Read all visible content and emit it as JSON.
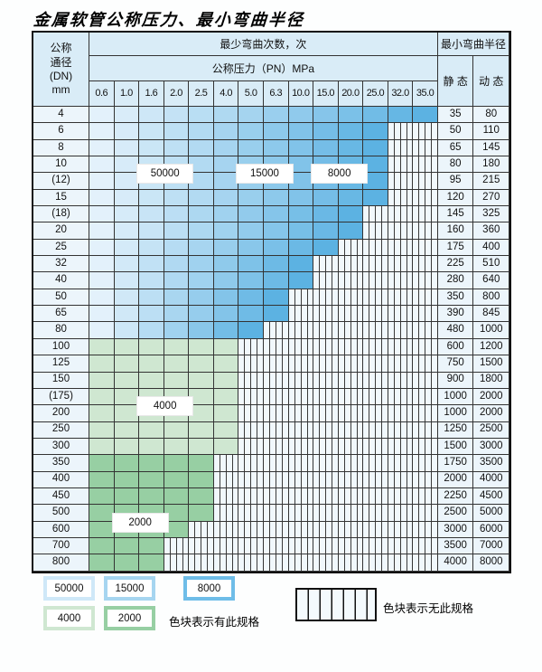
{
  "title": "金属软管公称压力、最小弯曲半径",
  "header": {
    "corner_lines": [
      "公称",
      "通径",
      "(DN)",
      "mm"
    ],
    "bend_times": "最少弯曲次数，次",
    "pressure": "公称压力（PN）MPa",
    "radius": "最小弯曲半径",
    "static_label": "静 态",
    "dynamic_label": "动 态",
    "pressures": [
      "0.6",
      "1.0",
      "1.6",
      "2.0",
      "2.5",
      "4.0",
      "5.0",
      "6.3",
      "10.0",
      "15.0",
      "20.0",
      "25.0",
      "32.0",
      "35.0"
    ]
  },
  "rows": [
    {
      "dn": "4",
      "static": "35",
      "dynamic": "80",
      "last_colored_col": 13,
      "band": "blue"
    },
    {
      "dn": "6",
      "static": "50",
      "dynamic": "110",
      "last_colored_col": 11,
      "band": "blue"
    },
    {
      "dn": "8",
      "static": "65",
      "dynamic": "145",
      "last_colored_col": 11,
      "band": "blue"
    },
    {
      "dn": "10",
      "static": "80",
      "dynamic": "180",
      "last_colored_col": 11,
      "band": "blue"
    },
    {
      "dn": "(12)",
      "static": "95",
      "dynamic": "215",
      "last_colored_col": 11,
      "band": "blue"
    },
    {
      "dn": "15",
      "static": "120",
      "dynamic": "270",
      "last_colored_col": 11,
      "band": "blue"
    },
    {
      "dn": "(18)",
      "static": "145",
      "dynamic": "325",
      "last_colored_col": 10,
      "band": "blue"
    },
    {
      "dn": "20",
      "static": "160",
      "dynamic": "360",
      "last_colored_col": 10,
      "band": "blue"
    },
    {
      "dn": "25",
      "static": "175",
      "dynamic": "400",
      "last_colored_col": 9,
      "band": "blue"
    },
    {
      "dn": "32",
      "static": "225",
      "dynamic": "510",
      "last_colored_col": 8,
      "band": "blue"
    },
    {
      "dn": "40",
      "static": "280",
      "dynamic": "640",
      "last_colored_col": 8,
      "band": "blue"
    },
    {
      "dn": "50",
      "static": "350",
      "dynamic": "800",
      "last_colored_col": 7,
      "band": "blue"
    },
    {
      "dn": "65",
      "static": "390",
      "dynamic": "845",
      "last_colored_col": 7,
      "band": "blue"
    },
    {
      "dn": "80",
      "static": "480",
      "dynamic": "1000",
      "last_colored_col": 6,
      "band": "blue"
    },
    {
      "dn": "100",
      "static": "600",
      "dynamic": "1200",
      "last_colored_col": 5,
      "band": "green4000"
    },
    {
      "dn": "125",
      "static": "750",
      "dynamic": "1500",
      "last_colored_col": 5,
      "band": "green4000"
    },
    {
      "dn": "150",
      "static": "900",
      "dynamic": "1800",
      "last_colored_col": 5,
      "band": "green4000"
    },
    {
      "dn": "(175)",
      "static": "1000",
      "dynamic": "2000",
      "last_colored_col": 5,
      "band": "green4000"
    },
    {
      "dn": "200",
      "static": "1000",
      "dynamic": "2000",
      "last_colored_col": 5,
      "band": "green4000"
    },
    {
      "dn": "250",
      "static": "1250",
      "dynamic": "2500",
      "last_colored_col": 5,
      "band": "green4000"
    },
    {
      "dn": "300",
      "static": "1500",
      "dynamic": "3000",
      "last_colored_col": 5,
      "band": "green4000"
    },
    {
      "dn": "350",
      "static": "1750",
      "dynamic": "3500",
      "last_colored_col": 4,
      "band": "green2000"
    },
    {
      "dn": "400",
      "static": "2000",
      "dynamic": "4000",
      "last_colored_col": 4,
      "band": "green2000"
    },
    {
      "dn": "450",
      "static": "2250",
      "dynamic": "4500",
      "last_colored_col": 4,
      "band": "green2000"
    },
    {
      "dn": "500",
      "static": "2500",
      "dynamic": "5000",
      "last_colored_col": 4,
      "band": "green2000"
    },
    {
      "dn": "600",
      "static": "3000",
      "dynamic": "6000",
      "last_colored_col": 3,
      "band": "green2000"
    },
    {
      "dn": "700",
      "static": "3500",
      "dynamic": "7000",
      "last_colored_col": 2,
      "band": "green2000"
    },
    {
      "dn": "800",
      "static": "4000",
      "dynamic": "8000",
      "last_colored_col": 2,
      "band": "green2000"
    }
  ],
  "annotations": [
    {
      "text": "50000",
      "col_start": 2,
      "col_end": 3,
      "row_start": 3,
      "row_end": 4
    },
    {
      "text": "15000",
      "col_start": 6,
      "col_end": 7,
      "row_start": 3,
      "row_end": 4
    },
    {
      "text": "8000",
      "col_start": 9,
      "col_end": 10,
      "row_start": 3,
      "row_end": 4
    },
    {
      "text": "4000",
      "col_start": 2,
      "col_end": 3,
      "row_start": 17,
      "row_end": 18
    },
    {
      "text": "2000",
      "col_start": 1,
      "col_end": 2,
      "row_start": 24,
      "row_end": 25
    }
  ],
  "legend": {
    "items": [
      {
        "value": "50000",
        "band": "b50000"
      },
      {
        "value": "15000",
        "band": "b15000"
      },
      {
        "value": "8000",
        "band": "b8000"
      },
      {
        "value": "4000",
        "band": "g4000"
      },
      {
        "value": "2000",
        "band": "g2000"
      }
    ],
    "has_spec_text": "色块表示有此规格",
    "no_spec_text": "色块表示无此规格"
  },
  "colors": {
    "b50000": "#cfe8f8",
    "b15000": "#a6d5f0",
    "b8000": "#6fbde8",
    "g4000": "#cfe7d1",
    "g2000": "#97cfa3",
    "blue_gradient_start": "#e3f1fb",
    "blue_gradient_end": "#5cb2e2"
  }
}
